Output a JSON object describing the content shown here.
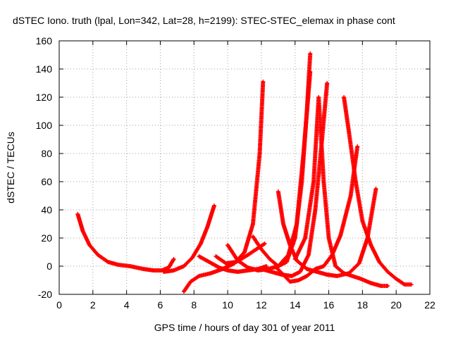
{
  "chart_data": {
    "type": "scatter",
    "title": "dSTEC Iono. truth (lpal, Lon=342, Lat=28, h=2199): STEC-STEC_elemax in phase cont",
    "xlabel": "GPS time / hours of day 301 of year 2011",
    "ylabel": "dSTEC  / TECUs",
    "xlim": [
      0,
      22
    ],
    "ylim": [
      -20,
      160
    ],
    "xticks": [
      "0",
      "2",
      "4",
      "6",
      "8",
      "10",
      "12",
      "14",
      "16",
      "18",
      "20",
      "22"
    ],
    "yticks": [
      "-20",
      "0",
      "20",
      "40",
      "60",
      "80",
      "100",
      "120",
      "140",
      "160"
    ],
    "grid": true,
    "marker": "+",
    "color": "#ff0000",
    "series": [
      {
        "x": [
          1.1,
          1.4,
          1.8,
          2.3,
          2.9,
          3.5,
          4.2,
          5.0,
          5.6,
          6.1,
          6.5,
          6.8
        ],
        "y": [
          37,
          25,
          15,
          8,
          3,
          1,
          0,
          -2,
          -3,
          -3,
          -1,
          5
        ]
      },
      {
        "x": [
          6.2,
          6.8,
          7.4,
          7.9,
          8.4,
          8.8,
          9.2
        ],
        "y": [
          -4,
          -3,
          0,
          6,
          16,
          28,
          43
        ]
      },
      {
        "x": [
          7.4,
          7.8,
          8.3,
          9.0,
          9.7,
          10.4,
          11.0,
          11.5,
          11.9,
          12.1
        ],
        "y": [
          -18,
          -11,
          -7,
          -5,
          -2,
          2,
          10,
          30,
          80,
          131
        ]
      },
      {
        "x": [
          8.3,
          8.9,
          9.5,
          10.0,
          10.6,
          11.2,
          11.8,
          12.3
        ],
        "y": [
          7,
          3,
          -1,
          -3,
          -4,
          -3,
          -2,
          0
        ]
      },
      {
        "x": [
          9.3,
          9.9,
          10.5,
          11.2,
          11.7,
          12.2
        ],
        "y": [
          7,
          2,
          3,
          8,
          12,
          16
        ]
      },
      {
        "x": [
          10.0,
          10.6,
          11.2,
          11.8,
          12.4,
          13.0,
          13.6,
          14.1,
          14.5,
          14.9
        ],
        "y": [
          15,
          4,
          -1,
          -3,
          -2,
          0,
          8,
          30,
          80,
          138
        ]
      },
      {
        "x": [
          11.5,
          12.0,
          12.5,
          13.0,
          13.5,
          14.0,
          14.4,
          14.7,
          14.9
        ],
        "y": [
          21,
          12,
          5,
          0,
          3,
          20,
          60,
          110,
          151
        ]
      },
      {
        "x": [
          12.0,
          12.6,
          13.2,
          13.8,
          14.3,
          14.8,
          15.2,
          15.6,
          15.9
        ],
        "y": [
          -2,
          -4,
          -6,
          -7,
          -4,
          8,
          40,
          90,
          130
        ]
      },
      {
        "x": [
          13.0,
          13.3,
          13.7,
          14.1,
          14.7,
          15.3,
          15.9,
          16.5,
          17.2,
          17.8,
          18.3,
          18.8
        ],
        "y": [
          53,
          30,
          15,
          4,
          -2,
          -4,
          -6,
          -7,
          -5,
          2,
          20,
          55
        ]
      },
      {
        "x": [
          12.8,
          13.3,
          13.7,
          14.2,
          14.7,
          15.2,
          15.7,
          16.2,
          16.7,
          17.3,
          17.7
        ],
        "y": [
          0,
          -6,
          -11,
          -10,
          -7,
          -2,
          0,
          8,
          22,
          50,
          85
        ]
      },
      {
        "x": [
          14.0,
          14.6,
          15.1,
          15.4,
          15.7,
          16.0,
          16.4,
          16.9,
          17.4,
          17.9,
          18.5,
          19.1,
          19.5
        ],
        "y": [
          5,
          20,
          60,
          120,
          60,
          20,
          0,
          -5,
          -7,
          -9,
          -12,
          -14,
          -14
        ]
      },
      {
        "x": [
          16.9,
          17.2,
          17.6,
          18.0,
          18.5,
          19.0,
          19.5,
          20.0,
          20.5,
          20.9
        ],
        "y": [
          120,
          95,
          60,
          32,
          15,
          3,
          -4,
          -9,
          -13,
          -13
        ]
      }
    ]
  }
}
